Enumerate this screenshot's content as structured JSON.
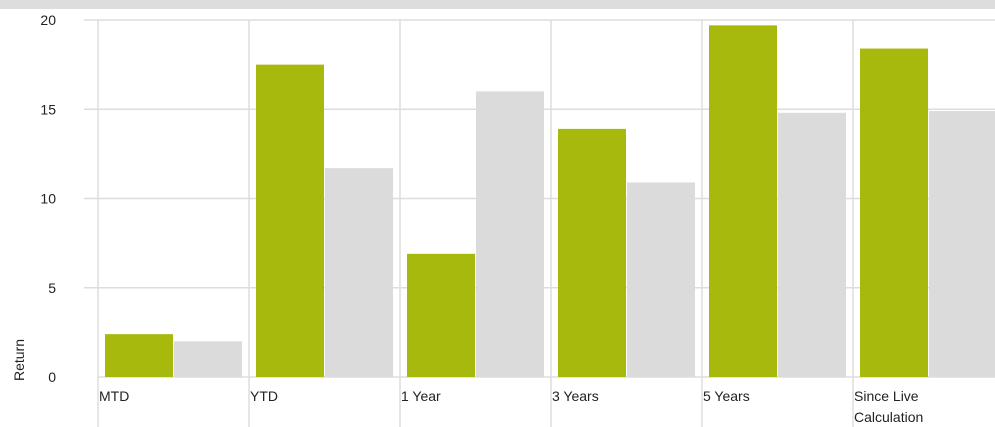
{
  "chart_data": {
    "type": "bar",
    "title": "",
    "xlabel": "",
    "ylabel": "Return",
    "ylim": [
      0,
      20
    ],
    "yticks": [
      "0",
      "5",
      "10",
      "15",
      "20"
    ],
    "grid": true,
    "categories": [
      "MTD",
      "YTD",
      "1 Year",
      "3 Years",
      "5 Years",
      "Since Live Calculation"
    ],
    "category_lines": [
      [
        "MTD"
      ],
      [
        "YTD"
      ],
      [
        "1 Year"
      ],
      [
        "3 Years"
      ],
      [
        "5 Years"
      ],
      [
        "Since Live",
        "Calculation"
      ]
    ],
    "series": [
      {
        "values": [
          2.4,
          17.5,
          6.9,
          13.9,
          19.7,
          18.4
        ],
        "color": "#a6b90c"
      },
      {
        "values": [
          2.0,
          11.7,
          16.0,
          10.9,
          14.8,
          14.9
        ],
        "color": "#dbdbdb"
      }
    ],
    "colors": {
      "grid": "#dddddd",
      "top_band": "#dddddd"
    }
  }
}
